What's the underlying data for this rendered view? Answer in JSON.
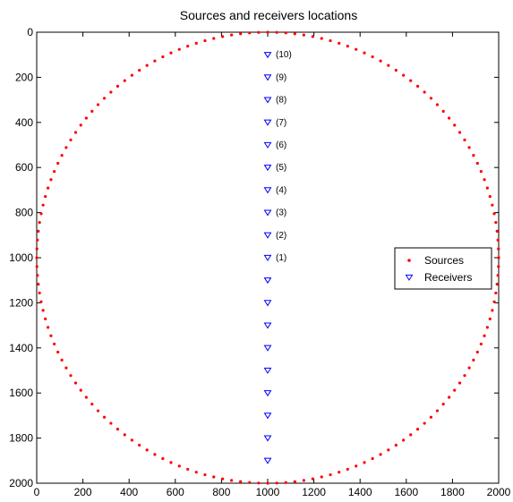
{
  "chart_data": {
    "type": "scatter",
    "title": "Sources and receivers locations",
    "xlabel": "",
    "ylabel": "",
    "xlim": [
      0,
      2000
    ],
    "ylim": [
      0,
      2000
    ],
    "y_reversed": true,
    "grid": false,
    "legend_position": "right",
    "x_ticks": [
      "0",
      "200",
      "400",
      "600",
      "800",
      "1000",
      "1200",
      "1400",
      "1600",
      "1800",
      "2000"
    ],
    "y_ticks": [
      "0",
      "200",
      "400",
      "600",
      "800",
      "1000",
      "1200",
      "1400",
      "1600",
      "1800",
      "2000"
    ],
    "series": [
      {
        "name": "Sources",
        "marker": "dot",
        "color": "#ff0000",
        "shape": "circle",
        "center": [
          1000,
          1000
        ],
        "radius": 1000,
        "count": 160
      },
      {
        "name": "Receivers",
        "marker": "triangle-down",
        "color": "#0000ff",
        "x": [
          1000,
          1000,
          1000,
          1000,
          1000,
          1000,
          1000,
          1000,
          1000,
          1000,
          1000,
          1000,
          1000,
          1000,
          1000,
          1000,
          1000,
          1000,
          1000
        ],
        "y": [
          100,
          200,
          300,
          400,
          500,
          600,
          700,
          800,
          900,
          1000,
          1100,
          1200,
          1300,
          1400,
          1500,
          1600,
          1700,
          1800,
          1900
        ]
      }
    ],
    "annotations": [
      {
        "text": "(10)",
        "x": 1000,
        "y": 100
      },
      {
        "text": "(9)",
        "x": 1000,
        "y": 200
      },
      {
        "text": "(8)",
        "x": 1000,
        "y": 300
      },
      {
        "text": "(7)",
        "x": 1000,
        "y": 400
      },
      {
        "text": "(6)",
        "x": 1000,
        "y": 500
      },
      {
        "text": "(5)",
        "x": 1000,
        "y": 600
      },
      {
        "text": "(4)",
        "x": 1000,
        "y": 700
      },
      {
        "text": "(3)",
        "x": 1000,
        "y": 800
      },
      {
        "text": "(2)",
        "x": 1000,
        "y": 900
      },
      {
        "text": "(1)",
        "x": 1000,
        "y": 1000
      }
    ]
  }
}
